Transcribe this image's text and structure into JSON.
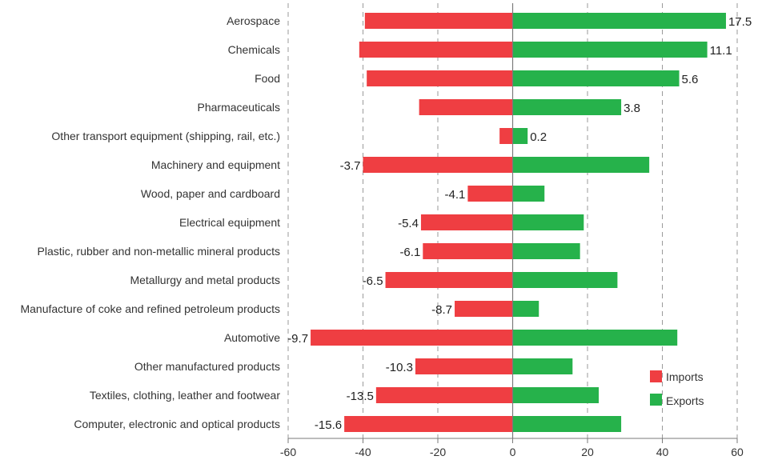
{
  "chart_data": {
    "type": "bar",
    "orientation": "horizontal",
    "categories": [
      "Aerospace",
      "Chemicals",
      "Food",
      "Pharmaceuticals",
      "Other transport equipment (shipping, rail, etc.)",
      "Machinery and equipment",
      "Wood, paper and cardboard",
      "Electrical equipment",
      "Plastic, rubber and non-metallic mineral products",
      "Metallurgy and metal products",
      "Manufacture of coke and refined petroleum products",
      "Automotive",
      "Other manufactured products",
      "Textiles, clothing, leather and footwear",
      "Computer, electronic and optical products"
    ],
    "series": [
      {
        "name": "Imports",
        "color": "#ef3e42",
        "values": [
          -39.5,
          -41,
          -39,
          -25,
          -3.5,
          -40,
          -12,
          -24.5,
          -24,
          -34,
          -15.5,
          -54,
          -26,
          -36.5,
          -45
        ]
      },
      {
        "name": "Exports",
        "color": "#26b24b",
        "values": [
          57,
          52,
          44.5,
          29,
          4,
          36.5,
          8.5,
          19,
          18,
          28,
          7,
          44,
          16,
          23,
          29
        ]
      }
    ],
    "balance_labels": [
      "17.5",
      "11.1",
      "5.6",
      "3.8",
      "0.2",
      "-3.7",
      "-4.1",
      "-5.4",
      "-6.1",
      "-6.5",
      "-8.7",
      "-9.7",
      "-10.3",
      "-13.5",
      "-15.6"
    ],
    "x_ticks": [
      "-60",
      "-40",
      "-20",
      "0",
      "20",
      "40",
      "60"
    ],
    "xlim": [
      -60,
      60
    ],
    "grid": "vertical-dashed",
    "legend": {
      "placement": "bottom-right",
      "entries": [
        "Imports",
        "Exports"
      ]
    },
    "title": "",
    "xlabel": "",
    "ylabel": ""
  }
}
